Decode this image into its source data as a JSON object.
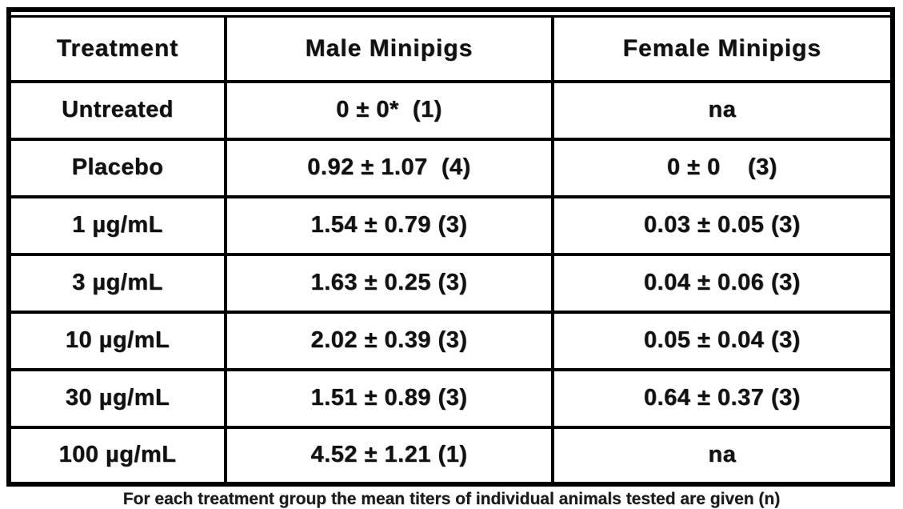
{
  "chart_data": {
    "type": "table",
    "columns": [
      "Treatment",
      "Male Minipigs",
      "Female Minipigs"
    ],
    "rows": [
      [
        "Untreated",
        "0 ± 0*  (1)",
        "na"
      ],
      [
        "Placebo",
        "0.92 ± 1.07  (4)",
        "0 ± 0    (3)"
      ],
      [
        "1 µg/mL",
        "1.54 ± 0.79 (3)",
        "0.03 ± 0.05 (3)"
      ],
      [
        "3 µg/mL",
        "1.63 ± 0.25 (3)",
        "0.04 ± 0.06 (3)"
      ],
      [
        "10 µg/mL",
        "2.02 ± 0.39 (3)",
        "0.05 ± 0.04 (3)"
      ],
      [
        "30 µg/mL",
        "1.51 ± 0.89 (3)",
        "0.64 ± 0.37 (3)"
      ],
      [
        "100 µg/mL",
        "4.52 ± 1.21 (1)",
        "na"
      ]
    ]
  },
  "footnote": {
    "text": "For each treatment group the mean titers of individual animals tested are given (n)"
  },
  "colors": {
    "ink": "#000000",
    "background": "#ffffff"
  }
}
